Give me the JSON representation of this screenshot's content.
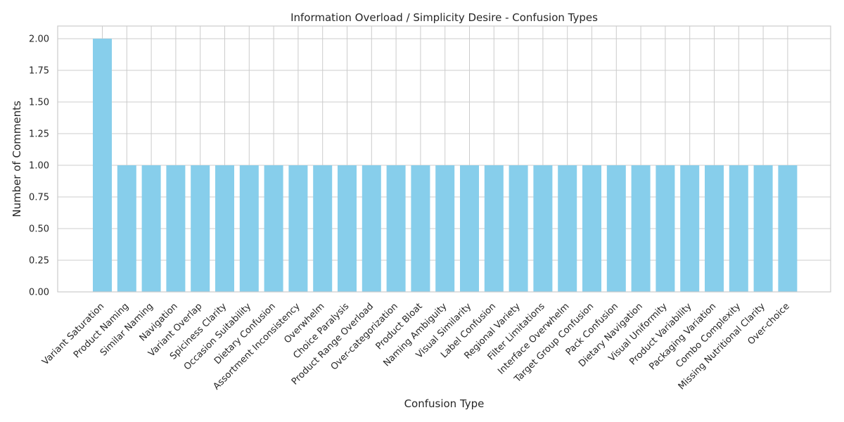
{
  "chart_data": {
    "type": "bar",
    "title": "Information Overload / Simplicity Desire - Confusion Types",
    "xlabel": "Confusion Type",
    "ylabel": "Number of Comments",
    "ylim": [
      0,
      2.1
    ],
    "yticks": [
      "0.00",
      "0.25",
      "0.50",
      "0.75",
      "1.00",
      "1.25",
      "1.50",
      "1.75",
      "2.00"
    ],
    "grid": true,
    "bar_color": "#87CEEB",
    "categories": [
      "Variant Saturation",
      "Product Naming",
      "Similar Naming",
      "Navigation",
      "Variant Overlap",
      "Spiciness Clarity",
      "Occasion Suitability",
      "Dietary Confusion",
      "Assortment Inconsistency",
      "Overwhelm",
      "Choice Paralysis",
      "Product Range Overload",
      "Over-categorization",
      "Product Bloat",
      "Naming Ambiguity",
      "Visual Similarity",
      "Label Confusion",
      "Regional Variety",
      "Filter Limitations",
      "Interface Overwhelm",
      "Target Group Confusion",
      "Pack Confusion",
      "Dietary Navigation",
      "Visual Uniformity",
      "Product Variability",
      "Packaging Variation",
      "Combo Complexity",
      "Missing Nutritional Clarity",
      "Over-choice"
    ],
    "values": [
      2,
      1,
      1,
      1,
      1,
      1,
      1,
      1,
      1,
      1,
      1,
      1,
      1,
      1,
      1,
      1,
      1,
      1,
      1,
      1,
      1,
      1,
      1,
      1,
      1,
      1,
      1,
      1,
      1
    ]
  }
}
